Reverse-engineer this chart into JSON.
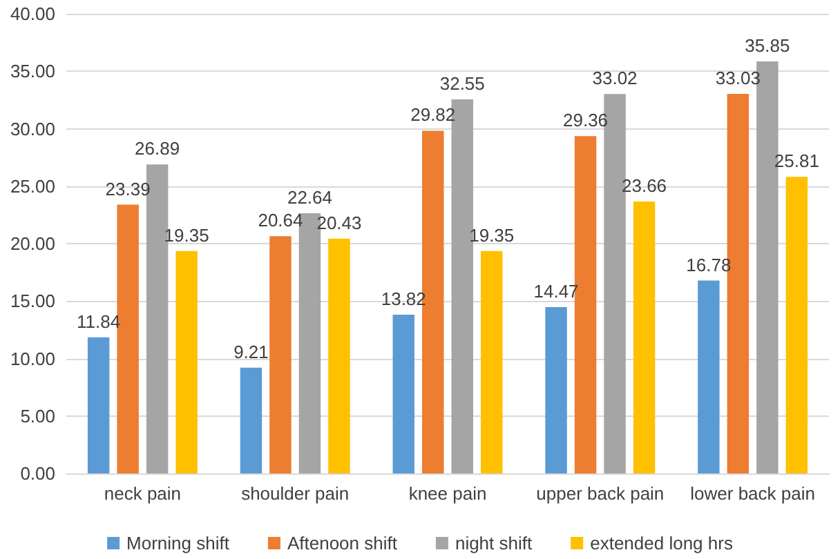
{
  "chart_data": {
    "type": "bar",
    "categories": [
      "neck pain",
      "shoulder pain",
      "knee pain",
      "upper back pain",
      "lower back pain"
    ],
    "series": [
      {
        "name": "Morning shift",
        "color": "#5b9bd5",
        "values": [
          11.84,
          9.21,
          13.82,
          14.47,
          16.78
        ]
      },
      {
        "name": "Aftenoon shift",
        "color": "#ed7d31",
        "values": [
          23.39,
          20.64,
          29.82,
          29.36,
          33.03
        ]
      },
      {
        "name": "night shift",
        "color": "#a5a5a5",
        "values": [
          26.89,
          22.64,
          32.55,
          33.02,
          35.85
        ]
      },
      {
        "name": "extended long hrs",
        "color": "#ffc000",
        "values": [
          19.35,
          20.43,
          19.35,
          23.66,
          25.81
        ]
      }
    ],
    "ylim": [
      0,
      40
    ],
    "yticks": [
      {
        "value": 0,
        "label": "0.00"
      },
      {
        "value": 5,
        "label": "5.00"
      },
      {
        "value": 10,
        "label": "10.00"
      },
      {
        "value": 15,
        "label": "15.00"
      },
      {
        "value": 20,
        "label": "20.00"
      },
      {
        "value": 25,
        "label": "25.00"
      },
      {
        "value": 30,
        "label": "30.00"
      },
      {
        "value": 35,
        "label": "35.00"
      },
      {
        "value": 40,
        "label": "40.00"
      }
    ],
    "grid": "y",
    "legend": "bottom",
    "data_labels": true
  }
}
